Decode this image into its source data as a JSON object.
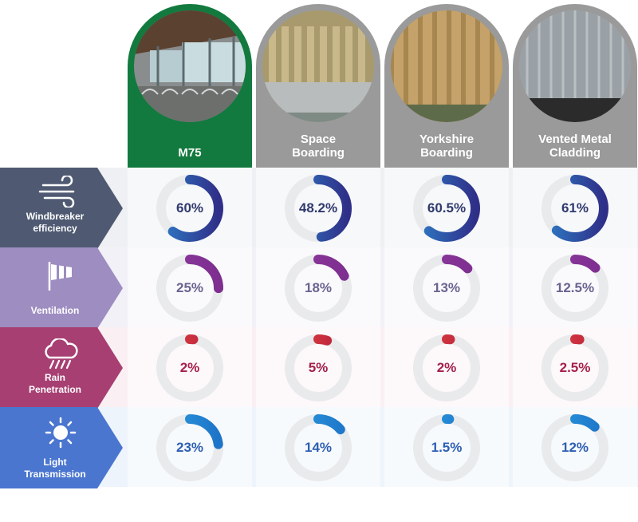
{
  "chart_data": {
    "type": "table",
    "categories": [
      "M75",
      "Space\nBoarding",
      "Yorkshire\nBoarding",
      "Vented Metal\nCladding"
    ],
    "series": [
      {
        "name": "Windbreaker\nefficiency",
        "values": [
          60,
          48.2,
          60.5,
          61
        ]
      },
      {
        "name": "Ventilation",
        "values": [
          25,
          18,
          13,
          12.5
        ]
      },
      {
        "name": "Rain\nPenetration",
        "values": [
          2,
          5,
          2,
          2.5
        ]
      },
      {
        "name": "Light\nTransmission",
        "values": [
          23,
          14,
          1.5,
          12
        ]
      }
    ],
    "labels": [
      [
        "60%",
        "48.2%",
        "60.5%",
        "61%"
      ],
      [
        "25%",
        "18%",
        "13%",
        "12.5%"
      ],
      [
        "2%",
        "5%",
        "2%",
        "2.5%"
      ],
      [
        "23%",
        "14%",
        "1.5%",
        "12%"
      ]
    ]
  },
  "columns": [
    {
      "label": "M75",
      "color": "#127a3e",
      "image": "barn-interior-photo"
    },
    {
      "label": "Space\nBoarding",
      "color": "#9a9a9a",
      "image": "space-boarding-photo"
    },
    {
      "label": "Yorkshire\nBoarding",
      "color": "#9a9a9a",
      "image": "yorkshire-boarding-photo"
    },
    {
      "label": "Vented Metal\nCladding",
      "color": "#9a9a9a",
      "image": "metal-cladding-photo"
    }
  ],
  "rows": [
    {
      "icon": "wind-icon",
      "color": "#4f5a72",
      "band": "#eef0f3",
      "arc_from": "#2e79c4",
      "arc_to": "#2f2f88",
      "text_color": "#303a6e"
    },
    {
      "icon": "windsock-icon",
      "color": "#9d8dc1",
      "band": "#f3f1f8",
      "arc_from": "#8e3a9e",
      "arc_to": "#7d2e8f",
      "text_color": "#6a6490"
    },
    {
      "icon": "rain-cloud-icon",
      "color": "#a73f73",
      "band": "#faf0f3",
      "arc_from": "#e2453f",
      "arc_to": "#b51d3e",
      "text_color": "#a5204a"
    },
    {
      "icon": "sun-icon",
      "color": "#4a76cf",
      "band": "#eef4fb",
      "arc_from": "#2b9de0",
      "arc_to": "#1e74c8",
      "text_color": "#2d5fb3"
    }
  ]
}
